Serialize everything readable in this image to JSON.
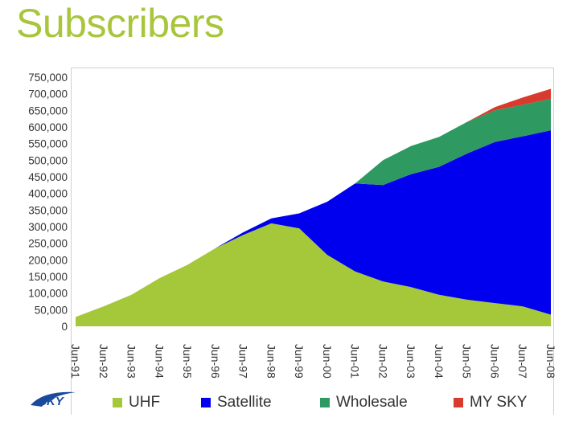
{
  "title": "Subscribers",
  "logo_text": "SKY",
  "chart_data": {
    "type": "area",
    "stacked": true,
    "x": [
      "Jun-91",
      "Jun-92",
      "Jun-93",
      "Jun-94",
      "Jun-95",
      "Jun-96",
      "Jun-97",
      "Jun-98",
      "Jun-99",
      "Jun-00",
      "Jun-01",
      "Jun-02",
      "Jun-03",
      "Jun-04",
      "Jun-05",
      "Jun-06",
      "Jun-07",
      "Jun-08"
    ],
    "ylim": [
      0,
      750000
    ],
    "yticks": [
      "0",
      "50,000",
      "100,000",
      "150,000",
      "200,000",
      "250,000",
      "300,000",
      "350,000",
      "400,000",
      "450,000",
      "500,000",
      "550,000",
      "600,000",
      "650,000",
      "700,000",
      "750,000"
    ],
    "legend_position": "bottom",
    "series": [
      {
        "name": "UHF",
        "color": "#a5c73a",
        "values": [
          28000,
          60000,
          95000,
          145000,
          185000,
          235000,
          275000,
          310000,
          295000,
          215000,
          165000,
          135000,
          118000,
          95000,
          80000,
          70000,
          60000,
          35000
        ]
      },
      {
        "name": "Satellite",
        "color": "#0000ee",
        "values": [
          0,
          0,
          0,
          0,
          0,
          0,
          8000,
          15000,
          45000,
          160000,
          265000,
          290000,
          340000,
          385000,
          440000,
          485000,
          512000,
          555000
        ]
      },
      {
        "name": "Wholesale",
        "color": "#2e9a62",
        "values": [
          0,
          0,
          0,
          0,
          0,
          0,
          0,
          0,
          0,
          0,
          0,
          75000,
          85000,
          90000,
          95000,
          95000,
          95000,
          95000
        ]
      },
      {
        "name": "MY SKY",
        "color": "#d93a2e",
        "values": [
          0,
          0,
          0,
          0,
          0,
          0,
          0,
          0,
          0,
          0,
          0,
          0,
          0,
          0,
          0,
          10000,
          22000,
          30000
        ]
      }
    ]
  }
}
